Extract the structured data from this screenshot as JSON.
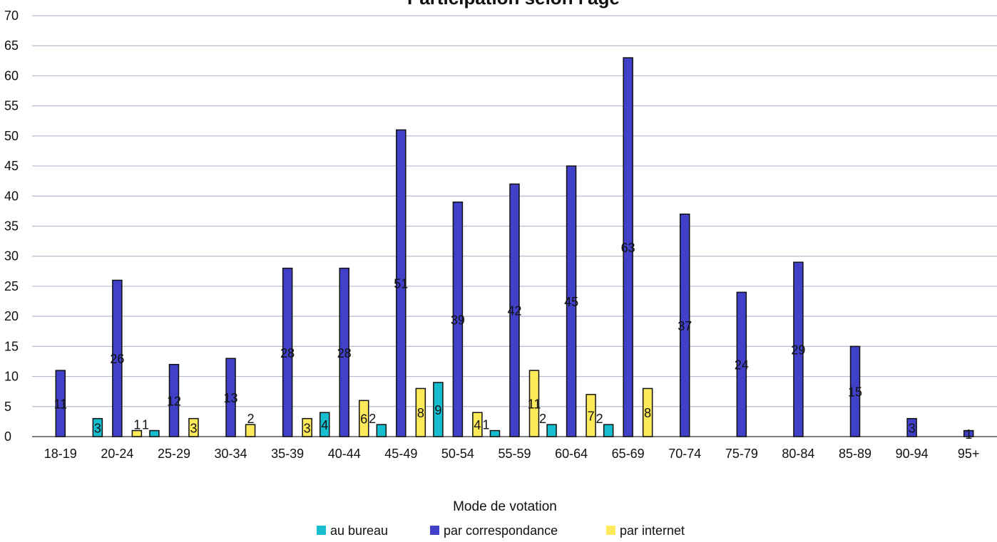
{
  "chart_data": {
    "type": "bar",
    "title": "Participation selon l'âge",
    "categories": [
      "18-19",
      "20-24",
      "25-29",
      "30-34",
      "35-39",
      "40-44",
      "45-49",
      "50-54",
      "55-59",
      "60-64",
      "65-69",
      "70-74",
      "75-79",
      "80-84",
      "85-89",
      "90-94",
      "95+"
    ],
    "series": [
      {
        "name": "au bureau",
        "color": "#17becf",
        "values": [
          null,
          3,
          1,
          null,
          null,
          4,
          2,
          9,
          1,
          2,
          2,
          null,
          null,
          null,
          null,
          null,
          null
        ]
      },
      {
        "name": "par correspondance",
        "color": "#4040c8",
        "values": [
          11,
          26,
          12,
          13,
          28,
          28,
          51,
          39,
          42,
          45,
          63,
          37,
          24,
          29,
          15,
          3,
          1
        ]
      },
      {
        "name": "par internet",
        "color": "#ffea5a",
        "values": [
          null,
          1,
          3,
          2,
          3,
          6,
          8,
          4,
          11,
          7,
          8,
          null,
          null,
          null,
          null,
          null,
          null
        ]
      }
    ],
    "ylim": [
      0,
      70
    ],
    "yticks": [
      0,
      5,
      10,
      15,
      20,
      25,
      30,
      35,
      40,
      45,
      50,
      55,
      60,
      65,
      70
    ],
    "grid": true,
    "legend": {
      "title": "Mode de votation",
      "position": "bottom"
    }
  }
}
